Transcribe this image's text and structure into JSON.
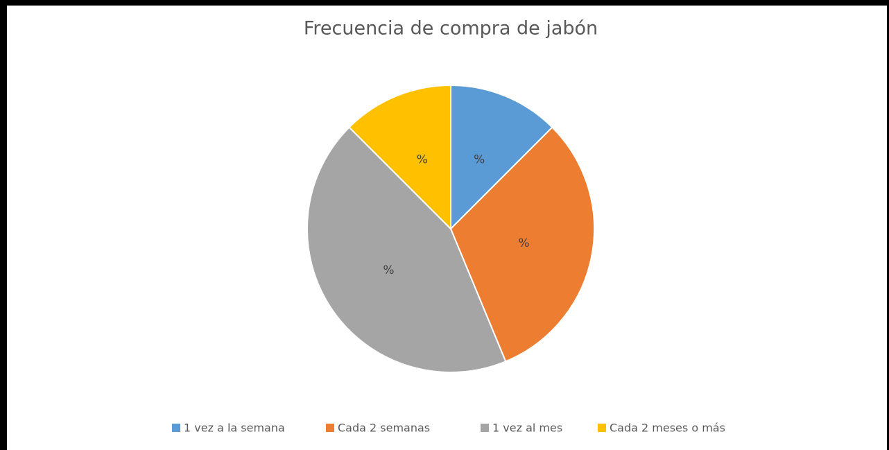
{
  "chart_data": {
    "type": "pie",
    "title": "Frecuencia de compra de jabón",
    "categories": [
      "1 vez a la semana",
      "Cada 2 semanas",
      "1 vez al mes",
      "Cada 2 meses o más"
    ],
    "values": [
      12.5,
      31.25,
      43.75,
      12.5
    ],
    "value_labels": [
      "%",
      "%",
      "%",
      "%"
    ],
    "colors": [
      "#5b9bd5",
      "#ed7d31",
      "#a5a5a5",
      "#ffc000"
    ],
    "legend": "bottom"
  }
}
